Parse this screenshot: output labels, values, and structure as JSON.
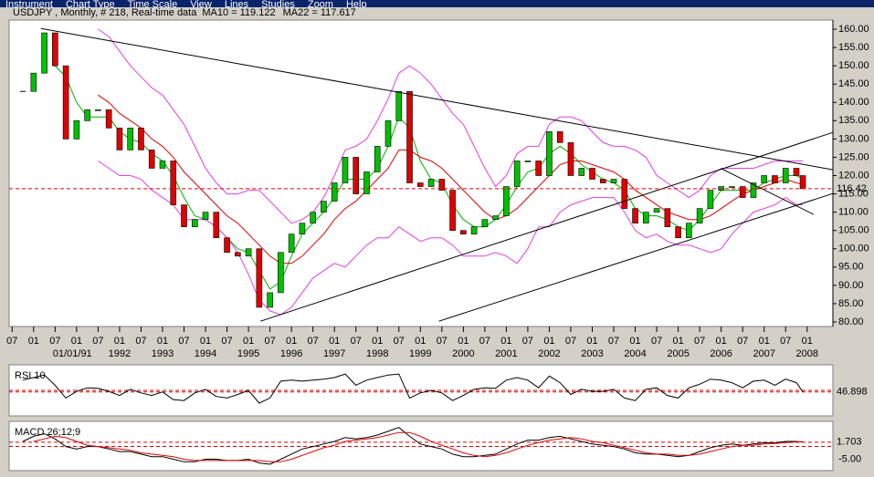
{
  "menu": [
    "Instrument",
    "Chart Type",
    "Time Scale",
    "View",
    "Lines",
    "Studies",
    "Zoom",
    "Help"
  ],
  "chart_data": [
    {
      "type": "candlestick",
      "title": "USDJPY , Monthly, # 218, Real-time data",
      "up_color": "#00c000",
      "down_color": "#e00000",
      "x": [
        1989.75,
        1990,
        1990.25,
        1990.5,
        1990.75,
        1991,
        1991.25,
        1991.5,
        1991.75,
        1992,
        1992.25,
        1992.5,
        1992.75,
        1993,
        1993.25,
        1993.5,
        1993.75,
        1994,
        1994.25,
        1994.5,
        1994.75,
        1995,
        1995.25,
        1995.5,
        1995.75,
        1996,
        1996.25,
        1996.5,
        1996.75,
        1997,
        1997.25,
        1997.5,
        1997.75,
        1998,
        1998.25,
        1998.5,
        1998.75,
        1999,
        1999.25,
        1999.5,
        1999.75,
        2000,
        2000.25,
        2000.5,
        2000.75,
        2001,
        2001.25,
        2001.5,
        2001.75,
        2002,
        2002.25,
        2002.5,
        2002.75,
        2003,
        2003.25,
        2003.5,
        2003.75,
        2004,
        2004.25,
        2004.5,
        2004.75,
        2005,
        2005.25,
        2005.5,
        2005.75,
        2006,
        2006.25,
        2006.5,
        2006.75,
        2007,
        2007.25,
        2007.5,
        2007.75,
        2007.9
      ],
      "close": [
        143,
        148,
        159,
        150,
        130,
        135,
        138,
        138,
        133,
        127,
        133,
        127,
        122,
        124,
        112,
        106,
        108,
        110,
        103,
        99,
        98,
        100,
        84,
        88,
        99,
        104,
        107,
        110,
        113,
        118,
        125,
        115,
        121,
        128,
        135,
        143,
        118,
        117,
        119,
        116,
        105,
        104,
        106,
        108,
        109,
        117,
        124,
        124,
        120,
        132,
        129,
        120,
        122,
        119,
        118,
        119,
        111,
        107,
        110,
        111,
        106,
        103,
        107,
        111,
        116,
        117,
        117,
        114,
        118,
        120,
        118,
        122,
        120,
        116.42
      ],
      "series": [
        {
          "name": "MA10 = 119.122",
          "color": "#00b000",
          "values": [
            null,
            null,
            null,
            150,
            147,
            140,
            136,
            136,
            136,
            132,
            130,
            129,
            126,
            124,
            120,
            114,
            109,
            108,
            106,
            103,
            100,
            99,
            94,
            89,
            91,
            98,
            104,
            107,
            110,
            114,
            119,
            119,
            119,
            122,
            128,
            136,
            133,
            124,
            119,
            118,
            112,
            108,
            106,
            106,
            108,
            112,
            117,
            121,
            122,
            126,
            128,
            126,
            123,
            121,
            119,
            118,
            116,
            111,
            109,
            109,
            108,
            106,
            105,
            108,
            112,
            116,
            116,
            116,
            116,
            118,
            119,
            120,
            120,
            119.122
          ]
        },
        {
          "name": "MA22 = 117.617",
          "color": "#e00000",
          "values": [
            null,
            null,
            null,
            null,
            null,
            null,
            null,
            142,
            140,
            137,
            135,
            133,
            130,
            128,
            125,
            121,
            118,
            115,
            112,
            109,
            107,
            104,
            101,
            98,
            96,
            96,
            98,
            101,
            104,
            108,
            111,
            113,
            116,
            119,
            122,
            127,
            127,
            125,
            124,
            122,
            119,
            116,
            113,
            110,
            108,
            109,
            111,
            114,
            117,
            120,
            123,
            124,
            124,
            123,
            122,
            121,
            119,
            116,
            114,
            112,
            110,
            109,
            108,
            108,
            109,
            111,
            113,
            115,
            116,
            117,
            118,
            119,
            118,
            117.617
          ]
        },
        {
          "color": "#e040e0",
          "values": [
            null,
            null,
            null,
            null,
            null,
            null,
            null,
            160,
            158,
            154,
            150,
            147,
            144,
            142,
            138,
            134,
            128,
            122,
            118,
            115,
            115,
            116,
            116,
            113,
            110,
            107,
            108,
            110,
            114,
            120,
            127,
            128,
            130,
            135,
            141,
            148,
            150,
            148,
            145,
            141,
            137,
            134,
            128,
            122,
            117,
            120,
            126,
            128,
            128,
            134,
            136,
            136,
            135,
            132,
            129,
            128,
            128,
            127,
            125,
            120,
            118,
            116,
            114,
            116,
            120,
            122,
            122,
            122,
            122,
            123,
            124,
            124,
            124,
            124
          ]
        },
        {
          "color": "#e040e0",
          "values": [
            null,
            null,
            null,
            null,
            null,
            null,
            null,
            124,
            122,
            120,
            120,
            119,
            116,
            114,
            112,
            108,
            108,
            108,
            106,
            103,
            99,
            93,
            86,
            83,
            82,
            84,
            88,
            92,
            94,
            96,
            95,
            98,
            101,
            103,
            103,
            106,
            104,
            102,
            103,
            103,
            101,
            98,
            98,
            98,
            99,
            98,
            96,
            100,
            106,
            106,
            110,
            112,
            113,
            114,
            114,
            114,
            110,
            105,
            103,
            104,
            102,
            101,
            101,
            100,
            99,
            100,
            104,
            107,
            110,
            111,
            112,
            114,
            112,
            112
          ]
        }
      ],
      "trendlines": [
        {
          "x": [
            1990.17,
            2008.6
          ],
          "y": [
            160.2,
            121.6
          ]
        },
        {
          "x": [
            1995.28,
            2008.6
          ],
          "y": [
            80.2,
            131.8
          ]
        },
        {
          "x": [
            1999.43,
            2008.6
          ],
          "y": [
            80.2,
            115.1
          ]
        },
        {
          "x": [
            2006.02,
            2008.15
          ],
          "y": [
            121.8,
            109.4
          ]
        }
      ],
      "last_price": 116.42,
      "last_color": "#e00000",
      "xlim": [
        1989.43,
        2008.6
      ],
      "ylim": [
        78.75,
        162.5
      ],
      "yticks": [
        {
          "value": 80,
          "label": "80.00"
        },
        {
          "value": 85,
          "label": "85.00"
        },
        {
          "value": 90,
          "label": "90.00"
        },
        {
          "value": 95,
          "label": "95.00"
        },
        {
          "value": 100,
          "label": "100.00"
        },
        {
          "value": 105,
          "label": "105.00"
        },
        {
          "value": 110,
          "label": "110.00"
        },
        {
          "value": 115,
          "label": "115.00"
        },
        {
          "value": 120,
          "label": "120.00"
        },
        {
          "value": 125,
          "label": "125.00"
        },
        {
          "value": 130,
          "label": "130.00"
        },
        {
          "value": 135,
          "label": "135.00"
        },
        {
          "value": 140,
          "label": "140.00"
        },
        {
          "value": 145,
          "label": "145.00"
        },
        {
          "value": 150,
          "label": "150.00"
        },
        {
          "value": 155,
          "label": "155.00"
        },
        {
          "value": 160,
          "label": "160.00"
        }
      ],
      "xticks": [
        {
          "value": 1989.5,
          "label": "07"
        },
        {
          "value": 1990,
          "label": "01"
        },
        {
          "value": 1990.5,
          "label": "07"
        },
        {
          "value": 1991,
          "label": "01"
        },
        {
          "value": 1991.5,
          "label": "07"
        },
        {
          "value": 1992,
          "label": "01"
        },
        {
          "value": 1992.5,
          "label": "07"
        },
        {
          "value": 1993,
          "label": "01"
        },
        {
          "value": 1993.5,
          "label": "07"
        },
        {
          "value": 1994,
          "label": "01"
        },
        {
          "value": 1994.5,
          "label": "07"
        },
        {
          "value": 1995,
          "label": "01"
        },
        {
          "value": 1995.5,
          "label": "07"
        },
        {
          "value": 1996,
          "label": "01"
        },
        {
          "value": 1996.5,
          "label": "07"
        },
        {
          "value": 1997,
          "label": "01"
        },
        {
          "value": 1997.5,
          "label": "07"
        },
        {
          "value": 1998,
          "label": "01"
        },
        {
          "value": 1998.5,
          "label": "07"
        },
        {
          "value": 1999,
          "label": "01"
        },
        {
          "value": 1999.5,
          "label": "07"
        },
        {
          "value": 2000,
          "label": "01"
        },
        {
          "value": 2000.5,
          "label": "07"
        },
        {
          "value": 2001,
          "label": "01"
        },
        {
          "value": 2001.5,
          "label": "07"
        },
        {
          "value": 2002,
          "label": "01"
        },
        {
          "value": 2002.5,
          "label": "07"
        },
        {
          "value": 2003,
          "label": "01"
        },
        {
          "value": 2003.5,
          "label": "07"
        },
        {
          "value": 2004,
          "label": "01"
        },
        {
          "value": 2004.5,
          "label": "07"
        },
        {
          "value": 2005,
          "label": "01"
        },
        {
          "value": 2005.5,
          "label": "07"
        },
        {
          "value": 2006,
          "label": "01"
        },
        {
          "value": 2006.5,
          "label": "07"
        },
        {
          "value": 2007,
          "label": "01"
        },
        {
          "value": 2007.5,
          "label": "07"
        },
        {
          "value": 2008,
          "label": "01"
        }
      ],
      "xticks2": [
        {
          "value": 1991,
          "label": "01/01/91"
        },
        1992,
        1993,
        1994,
        1995,
        1996,
        1997,
        1998,
        1999,
        2000,
        2001,
        2002,
        2003,
        2004,
        2005,
        2006,
        2007,
        2008
      ]
    },
    {
      "type": "line",
      "title": "RSI 10",
      "color": "#000000",
      "values": [
        70,
        75,
        80,
        60,
        35,
        48,
        55,
        54,
        48,
        40,
        52,
        45,
        40,
        47,
        32,
        30,
        45,
        52,
        38,
        35,
        42,
        50,
        25,
        35,
        68,
        70,
        68,
        70,
        72,
        75,
        82,
        60,
        70,
        75,
        80,
        82,
        35,
        45,
        50,
        45,
        30,
        40,
        52,
        55,
        54,
        70,
        75,
        70,
        55,
        78,
        65,
        42,
        52,
        48,
        48,
        52,
        35,
        30,
        52,
        55,
        40,
        35,
        55,
        62,
        72,
        70,
        65,
        55,
        68,
        70,
        60,
        72,
        65,
        46.898
      ],
      "ylim": [
        0,
        100
      ],
      "ref_lines": [
        50
      ],
      "last_value": 46.898,
      "last_color": "#e00000"
    },
    {
      "type": "line",
      "title": "MACD 26;12;9",
      "series": [
        {
          "color": "#000000",
          "values": [
            2,
            4,
            5,
            3,
            0,
            -1,
            0,
            0,
            -1,
            -2,
            -2,
            -3,
            -4,
            -4,
            -5,
            -6,
            -6,
            -5,
            -5,
            -5.5,
            -5.5,
            -5,
            -6.5,
            -7,
            -5,
            -3,
            -1,
            0,
            1,
            2,
            3.5,
            3,
            3.5,
            4.5,
            6,
            7.5,
            4,
            1,
            0,
            -1,
            -3,
            -4,
            -4,
            -3.5,
            -3,
            -1,
            1,
            2.5,
            2.5,
            3.5,
            4,
            3,
            2,
            1,
            0.5,
            0,
            -1,
            -2.5,
            -3,
            -3,
            -3.5,
            -4,
            -3.5,
            -2,
            -0.5,
            0.5,
            1,
            0.5,
            1,
            1.5,
            1.5,
            2,
            2,
            1.703
          ]
        },
        {
          "color": "#e00000",
          "values": [
            null,
            2,
            3,
            4,
            3.5,
            2,
            0.5,
            0,
            -0.5,
            -1,
            -1.5,
            -2.5,
            -3,
            -3.5,
            -4,
            -5,
            -5.5,
            -5.5,
            -5.5,
            -5.5,
            -5.5,
            -5.5,
            -5.5,
            -6,
            -6,
            -5,
            -3.5,
            -2,
            -0.5,
            0.5,
            2,
            2.5,
            3,
            3.5,
            4.5,
            5.5,
            5.5,
            4,
            2,
            0.5,
            -1,
            -2.5,
            -3.5,
            -4,
            -3.5,
            -2.5,
            -1,
            0.5,
            1.5,
            2.5,
            3,
            3.5,
            3,
            2,
            1.5,
            0.5,
            -0.5,
            -1.5,
            -2.5,
            -3,
            -3,
            -3.5,
            -3.5,
            -3,
            -2,
            -1,
            0,
            0.5,
            0.5,
            1,
            1.2,
            1.5,
            1.8,
            1.9
          ]
        }
      ],
      "ylim": [
        -9.5,
        9.9
      ],
      "yticks": [
        {
          "value": -5,
          "label": "-5.00"
        }
      ],
      "ref_lines": [
        0
      ],
      "last_value": 1.703,
      "last_color": "#e00000"
    }
  ]
}
